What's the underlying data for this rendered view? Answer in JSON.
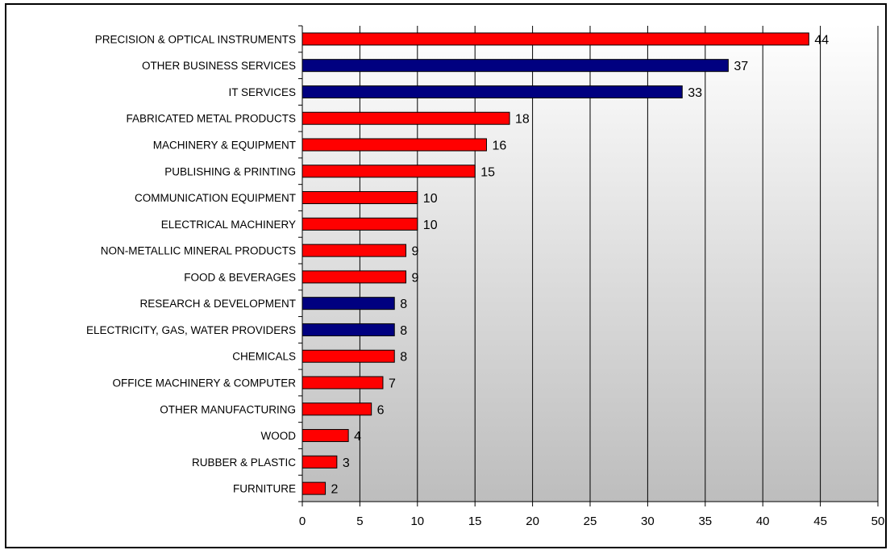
{
  "chart_data": {
    "type": "bar",
    "orientation": "horizontal",
    "categories": [
      "PRECISION & OPTICAL INSTRUMENTS",
      "OTHER BUSINESS SERVICES",
      "IT SERVICES",
      "FABRICATED METAL PRODUCTS",
      "MACHINERY & EQUIPMENT",
      "PUBLISHING & PRINTING",
      "COMMUNICATION EQUIPMENT",
      "ELECTRICAL MACHINERY",
      "NON-METALLIC MINERAL PRODUCTS",
      "FOOD & BEVERAGES",
      "RESEARCH & DEVELOPMENT",
      "ELECTRICITY, GAS, WATER PROVIDERS",
      "CHEMICALS",
      "OFFICE MACHINERY & COMPUTER",
      "OTHER MANUFACTURING",
      "WOOD",
      "RUBBER & PLASTIC",
      "FURNITURE"
    ],
    "values": [
      44,
      37,
      33,
      18,
      16,
      15,
      10,
      10,
      9,
      9,
      8,
      8,
      8,
      7,
      6,
      4,
      3,
      2
    ],
    "bar_colors": [
      "#ff0000",
      "#000080",
      "#000080",
      "#ff0000",
      "#ff0000",
      "#ff0000",
      "#ff0000",
      "#ff0000",
      "#ff0000",
      "#ff0000",
      "#000080",
      "#000080",
      "#ff0000",
      "#ff0000",
      "#ff0000",
      "#ff0000",
      "#ff0000",
      "#ff0000"
    ],
    "x_ticks": [
      0,
      5,
      10,
      15,
      20,
      25,
      30,
      35,
      40,
      45,
      50
    ],
    "xlim": [
      0,
      50
    ],
    "title": "",
    "xlabel": "",
    "ylabel": "",
    "vertical_gridlines": true,
    "legend": false,
    "plot_background": "gradient white to gray",
    "data_labels": true
  }
}
